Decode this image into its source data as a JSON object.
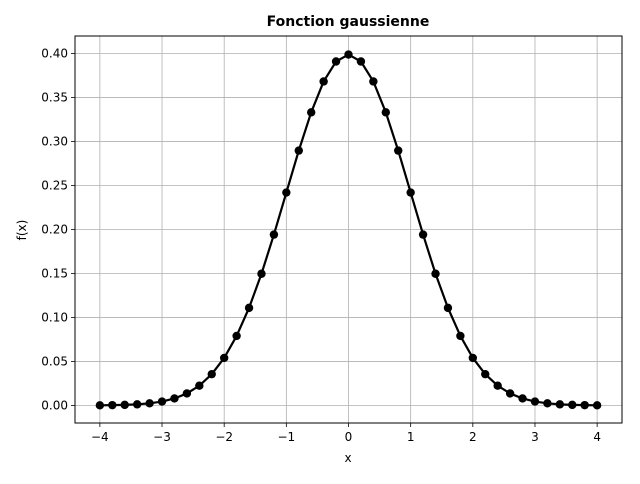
{
  "chart_data": {
    "type": "line",
    "title": "Fonction gaussienne",
    "xlabel": "x",
    "ylabel": "f(x)",
    "xlim": [
      -4.4,
      4.4
    ],
    "ylim": [
      -0.02,
      0.42
    ],
    "grid": true,
    "line_color": "#000000",
    "marker": "circle",
    "x_ticks": [
      -4,
      -3,
      -2,
      -1,
      0,
      1,
      2,
      3,
      4
    ],
    "x_tick_labels": [
      "−4",
      "−3",
      "−2",
      "−1",
      "0",
      "1",
      "2",
      "3",
      "4"
    ],
    "y_ticks": [
      0.0,
      0.05,
      0.1,
      0.15,
      0.2,
      0.25,
      0.3,
      0.35,
      0.4
    ],
    "y_tick_labels": [
      "0.00",
      "0.05",
      "0.10",
      "0.15",
      "0.20",
      "0.25",
      "0.30",
      "0.35",
      "0.40"
    ],
    "series": [
      {
        "x": [
          -4.0,
          -3.8,
          -3.6,
          -3.4,
          -3.2,
          -3.0,
          -2.8,
          -2.6,
          -2.4,
          -2.2,
          -2.0,
          -1.8,
          -1.6,
          -1.4,
          -1.2,
          -1.0,
          -0.8,
          -0.6,
          -0.4,
          -0.2,
          0.0,
          0.2,
          0.4,
          0.6,
          0.8,
          1.0,
          1.2,
          1.4,
          1.6,
          1.8,
          2.0,
          2.2,
          2.4,
          2.6,
          2.8,
          3.0,
          3.2,
          3.4,
          3.6,
          3.8,
          4.0
        ],
        "y": [
          0.0001,
          0.0003,
          0.0006,
          0.0012,
          0.0024,
          0.0044,
          0.0079,
          0.0136,
          0.0224,
          0.0355,
          0.054,
          0.079,
          0.1109,
          0.1497,
          0.1942,
          0.242,
          0.2897,
          0.3332,
          0.3683,
          0.391,
          0.3989,
          0.391,
          0.3683,
          0.3332,
          0.2897,
          0.242,
          0.1942,
          0.1497,
          0.1109,
          0.079,
          0.054,
          0.0355,
          0.0224,
          0.0136,
          0.0079,
          0.0044,
          0.0024,
          0.0012,
          0.0006,
          0.0003,
          0.0001
        ]
      }
    ]
  }
}
